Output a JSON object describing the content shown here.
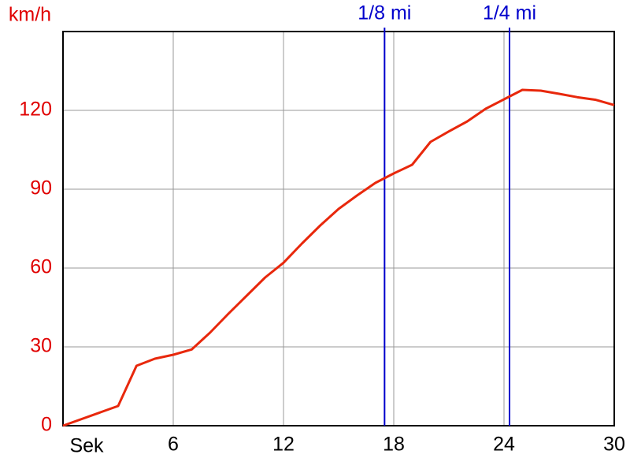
{
  "chart_data": {
    "type": "line",
    "y_label": "km/h",
    "x_label": "Sek",
    "x": [
      0,
      3,
      4,
      5,
      6,
      7,
      8,
      9,
      10,
      11,
      12,
      13,
      14,
      15,
      16,
      17,
      18,
      19,
      20,
      21,
      22,
      23,
      24,
      25,
      26,
      27,
      28,
      29,
      30
    ],
    "series": [
      {
        "color": "#e8280c",
        "values": [
          0,
          7.5,
          22.8,
          25.5,
          27,
          29,
          35.4,
          42.6,
          49.5,
          56.4,
          62,
          69.3,
          76.2,
          82.5,
          87.6,
          92.4,
          96,
          99.3,
          108,
          112,
          115.8,
          120.6,
          124.2,
          127.8,
          127.5,
          126.3,
          125,
          124,
          122
        ]
      }
    ],
    "xlim": [
      0,
      30
    ],
    "xticks": [
      6,
      12,
      18,
      24,
      30
    ],
    "ylim": [
      0,
      150
    ],
    "yticks": [
      0,
      30,
      60,
      90,
      120
    ],
    "grid": true,
    "y_tick_color": "#e00000",
    "marker_color": "#0000cc",
    "markers": [
      {
        "label": "1/8 mi",
        "x": 17.5
      },
      {
        "label": "1/4 mi",
        "x": 24.3
      }
    ]
  }
}
